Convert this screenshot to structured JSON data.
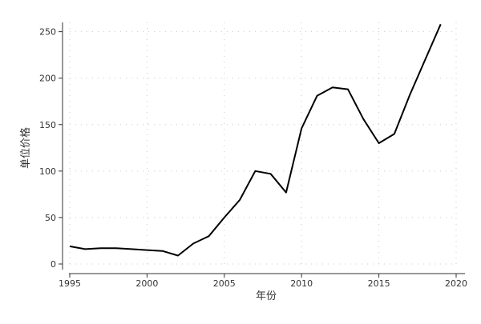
{
  "chart_data": {
    "type": "line",
    "xlabel": "年份",
    "ylabel": "单位价格",
    "xlim": [
      1995,
      2020
    ],
    "ylim": [
      0,
      260
    ],
    "xticks": [
      1995,
      2000,
      2005,
      2010,
      2015,
      2020
    ],
    "yticks": [
      0,
      50,
      100,
      150,
      200,
      250
    ],
    "grid": true,
    "line_color": "#000000",
    "grid_color": "#c8c8c8",
    "series": [
      {
        "x": [
          1995,
          1996,
          1997,
          1998,
          1999,
          2000,
          2001,
          2002,
          2003,
          2004,
          2005,
          2006,
          2007,
          2008,
          2009,
          2010,
          2011,
          2012,
          2013,
          2014,
          2015,
          2016,
          2017,
          2018,
          2019
        ],
        "values": [
          19,
          16,
          17,
          17,
          16,
          15,
          14,
          9,
          22,
          30,
          50,
          69,
          100,
          97,
          77,
          146,
          181,
          190,
          188,
          156,
          130,
          140,
          182,
          220,
          258
        ]
      }
    ]
  }
}
